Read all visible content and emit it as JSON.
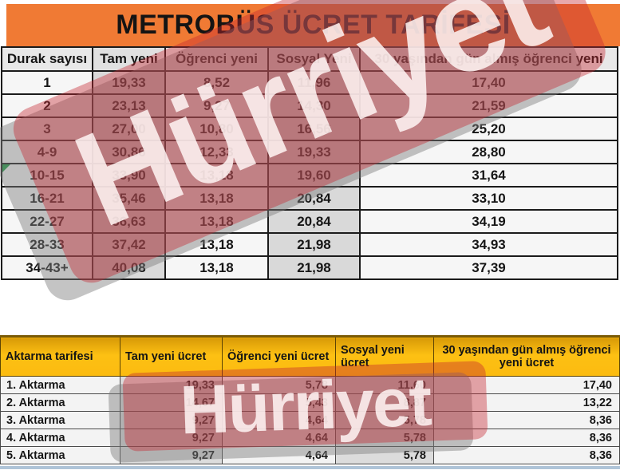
{
  "title": "METROBÜS ÜCRET TARİFESİ",
  "watermark": {
    "text": "Hürriyet"
  },
  "fare_table": {
    "headers": [
      "Durak sayısı",
      "Tam yeni",
      "Öğrenci yeni",
      "Sosyal Yeni",
      "30 yaşından gün almış öğrenci yeni"
    ],
    "rows": [
      [
        "1",
        "19,33",
        "8,52",
        "11,96",
        "17,40"
      ],
      [
        "2",
        "23,13",
        "9,27",
        "14,30",
        "21,59"
      ],
      [
        "3",
        "27,00",
        "10,80",
        "16,56",
        "25,20"
      ],
      [
        "4-9",
        "30,86",
        "12,33",
        "19,33",
        "28,80"
      ],
      [
        "10-15",
        "33,90",
        "13,18",
        "19,60",
        "31,64"
      ],
      [
        "16-21",
        "35,46",
        "13,18",
        "20,84",
        "33,10"
      ],
      [
        "22-27",
        "36,63",
        "13,18",
        "20,84",
        "34,19"
      ],
      [
        "28-33",
        "37,42",
        "13,18",
        "21,98",
        "34,93"
      ],
      [
        "34-43+",
        "40,08",
        "13,18",
        "21,98",
        "37,39"
      ]
    ],
    "flag_row_index": 4
  },
  "transfer_table": {
    "headers": [
      "Aktarma tarifesi",
      "Tam yeni ücret",
      "Öğrenci yeni ücret",
      "Sosyal yeni ücret",
      "30 yaşından gün almış öğrenci yeni ücret"
    ],
    "rows": [
      [
        "1. Aktarma",
        "19,33",
        "5,78",
        "11,60",
        "17,40"
      ],
      [
        "2. Aktarma",
        "14,67",
        "5,43",
        "8,87",
        "13,22"
      ],
      [
        "3. Aktarma",
        "9,27",
        "4,64",
        "5,78",
        "8,36"
      ],
      [
        "4. Aktarma",
        "9,27",
        "4,64",
        "5,78",
        "8,36"
      ],
      [
        "5. Aktarma",
        "9,27",
        "4,64",
        "5,78",
        "8,36"
      ]
    ]
  },
  "colors": {
    "banner_orange": "#F07A34",
    "transfer_header_yellow": "#FDC013",
    "watermark_red": "#C52630",
    "column_shade_gray": "#D9D9D9",
    "bottom_rule_blue": "#AFC4D8"
  }
}
